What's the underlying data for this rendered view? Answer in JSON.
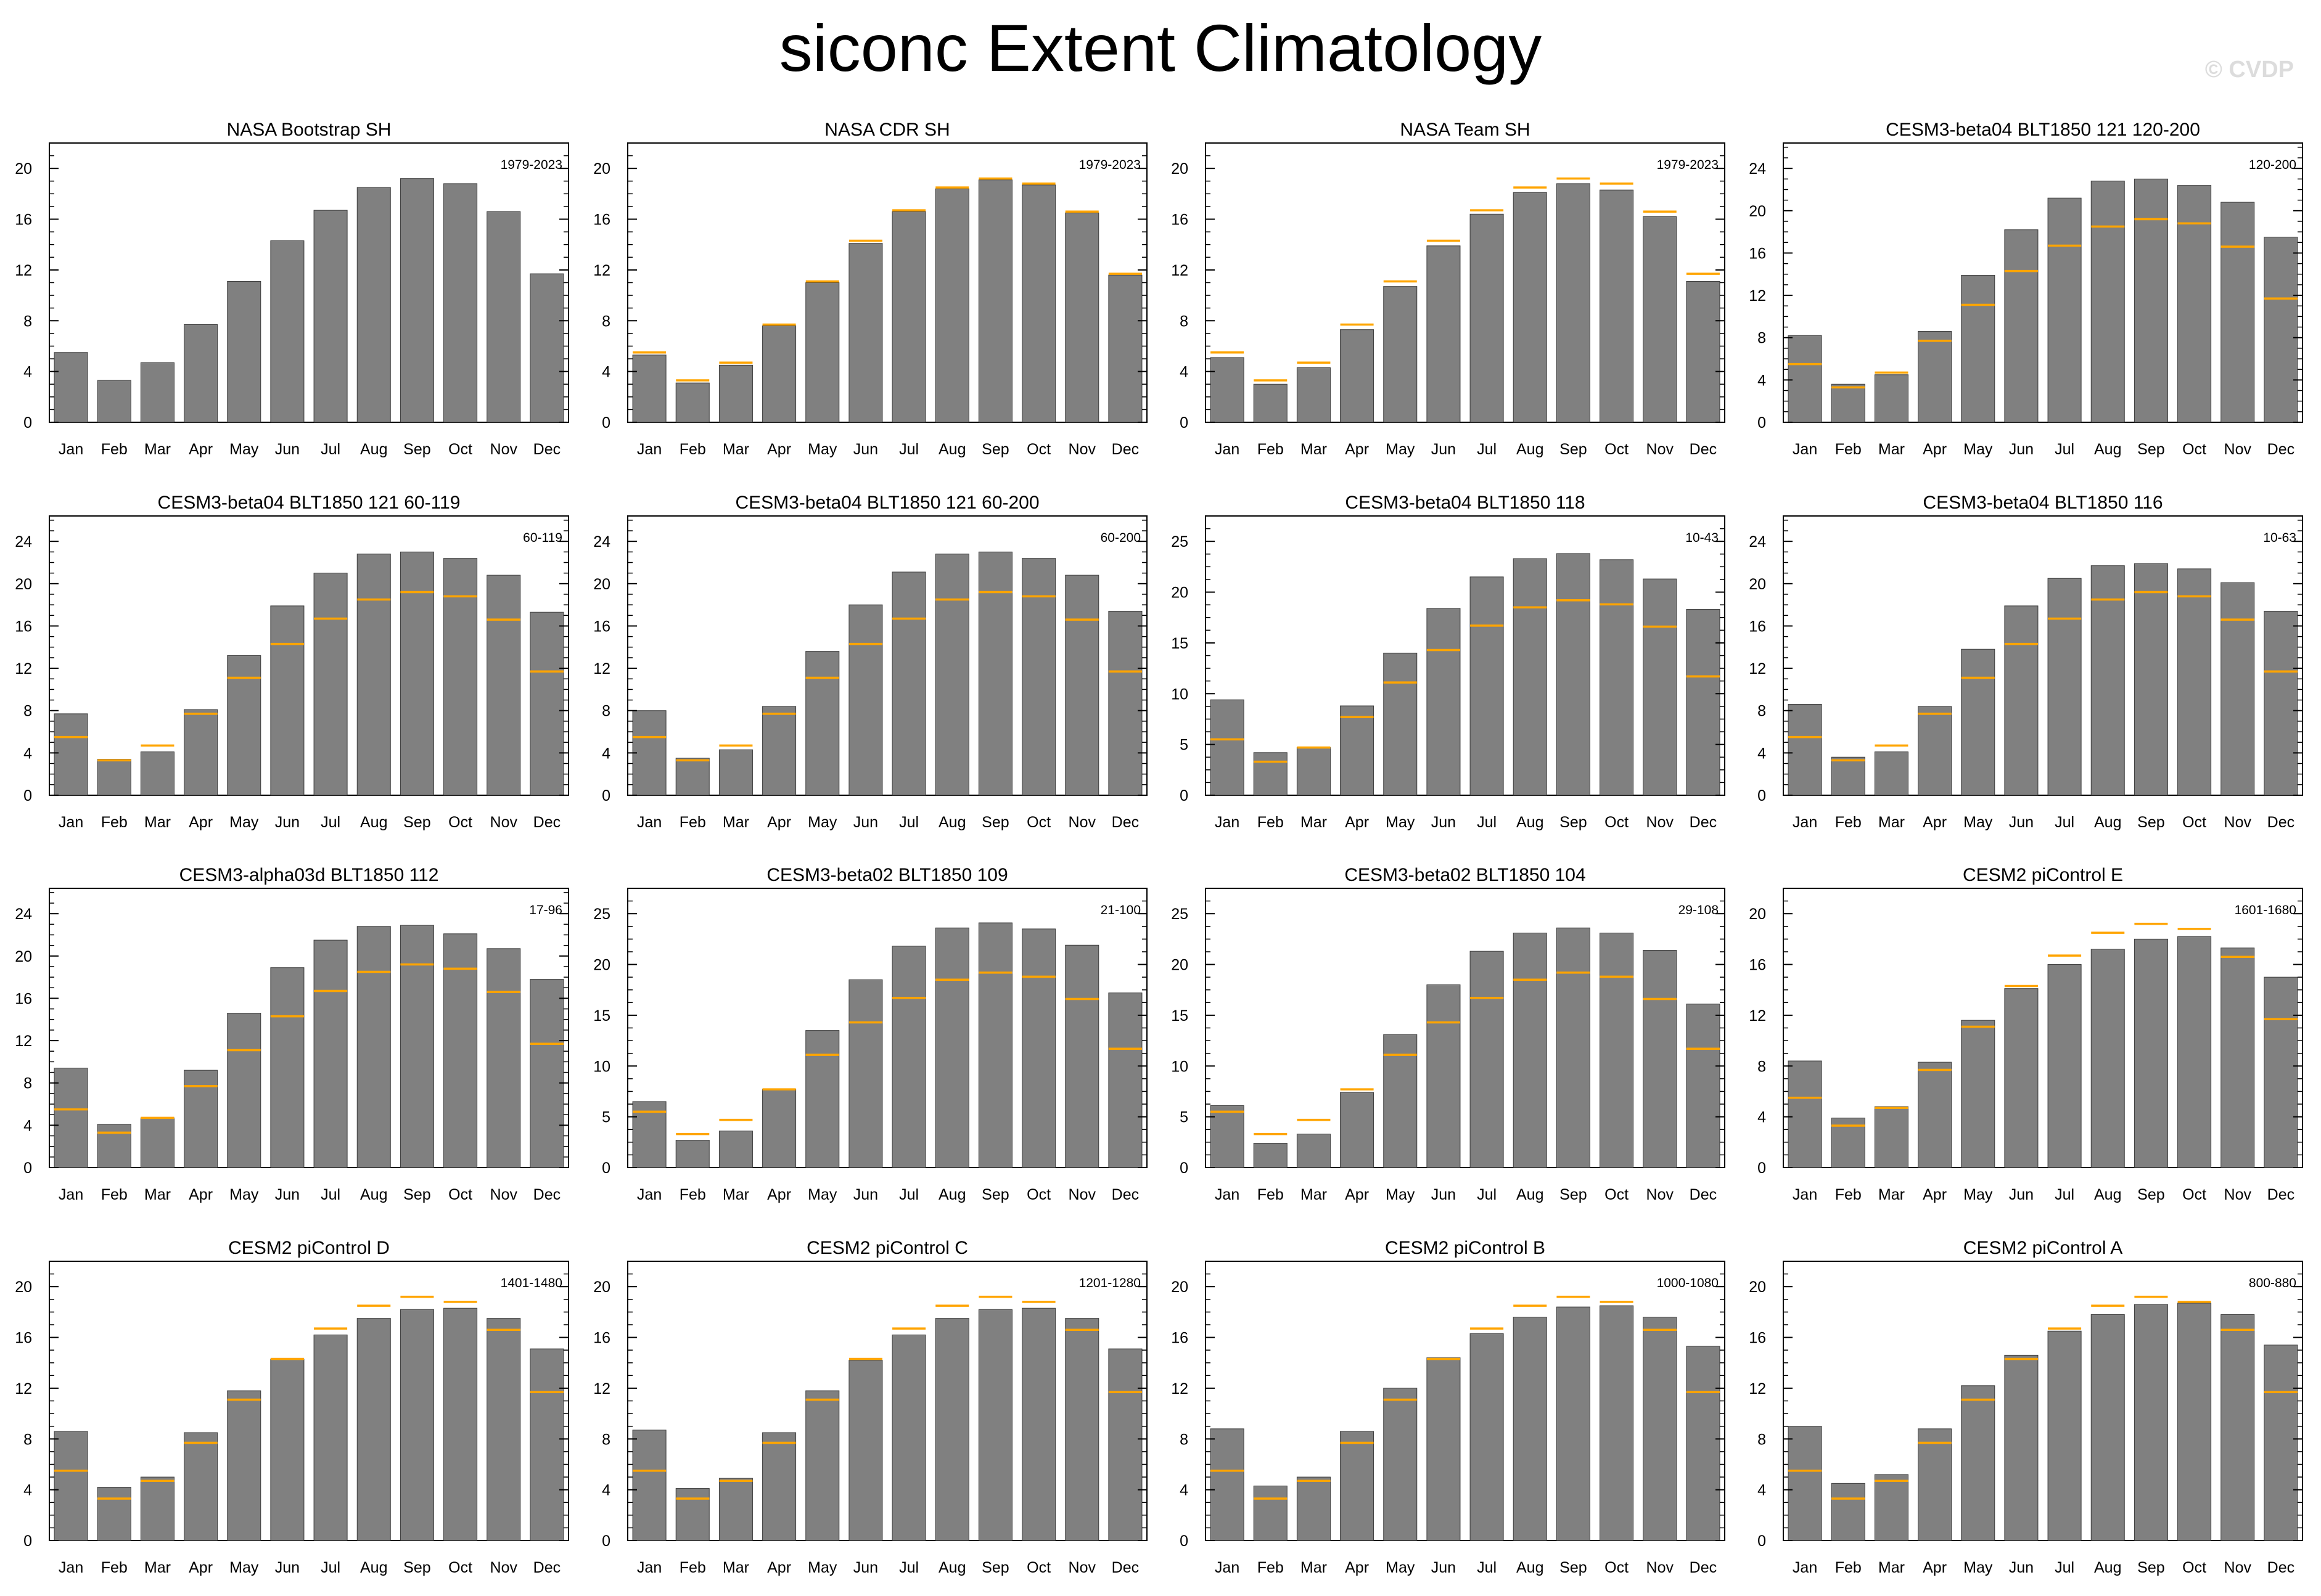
{
  "page": {
    "title": "siconc Extent Climatology",
    "watermark": "© CVDP"
  },
  "colors": {
    "bar": "#808080",
    "bar_edge": "#3c3c3c",
    "obs_line": "#ffa500",
    "highlight_title": "#ffa500",
    "axis": "#000000"
  },
  "chart_data": [
    {
      "type": "bar",
      "title": "NASA Bootstrap SH",
      "period": "1979-2023",
      "title_highlight": true,
      "ylim": [
        0,
        22
      ],
      "yticks": [
        0,
        4,
        8,
        12,
        16,
        20
      ],
      "categories": [
        "Jan",
        "Feb",
        "Mar",
        "Apr",
        "May",
        "Jun",
        "Jul",
        "Aug",
        "Sep",
        "Oct",
        "Nov",
        "Dec"
      ],
      "values": [
        5.5,
        3.3,
        4.7,
        7.7,
        11.1,
        14.3,
        16.7,
        18.5,
        19.2,
        18.8,
        16.6,
        11.7
      ],
      "reference": []
    },
    {
      "type": "bar",
      "title": "NASA CDR SH",
      "period": "1979-2023",
      "ylim": [
        0,
        22
      ],
      "yticks": [
        0,
        4,
        8,
        12,
        16,
        20
      ],
      "categories": [
        "Jan",
        "Feb",
        "Mar",
        "Apr",
        "May",
        "Jun",
        "Jul",
        "Aug",
        "Sep",
        "Oct",
        "Nov",
        "Dec"
      ],
      "values": [
        5.3,
        3.1,
        4.5,
        7.6,
        11.0,
        14.1,
        16.6,
        18.4,
        19.1,
        18.7,
        16.5,
        11.6
      ],
      "reference": [
        5.5,
        3.3,
        4.7,
        7.7,
        11.1,
        14.3,
        16.7,
        18.5,
        19.2,
        18.8,
        16.6,
        11.7
      ]
    },
    {
      "type": "bar",
      "title": "NASA Team SH",
      "period": "1979-2023",
      "ylim": [
        0,
        22
      ],
      "yticks": [
        0,
        4,
        8,
        12,
        16,
        20
      ],
      "categories": [
        "Jan",
        "Feb",
        "Mar",
        "Apr",
        "May",
        "Jun",
        "Jul",
        "Aug",
        "Sep",
        "Oct",
        "Nov",
        "Dec"
      ],
      "values": [
        5.1,
        3.0,
        4.3,
        7.3,
        10.7,
        13.9,
        16.4,
        18.1,
        18.8,
        18.3,
        16.2,
        11.1
      ],
      "reference": [
        5.5,
        3.3,
        4.7,
        7.7,
        11.1,
        14.3,
        16.7,
        18.5,
        19.2,
        18.8,
        16.6,
        11.7
      ]
    },
    {
      "type": "bar",
      "title": "CESM3-beta04 BLT1850 121 120-200",
      "period": "120-200",
      "ylim": [
        0,
        26.4
      ],
      "yticks": [
        0,
        4,
        8,
        12,
        16,
        20,
        24
      ],
      "categories": [
        "Jan",
        "Feb",
        "Mar",
        "Apr",
        "May",
        "Jun",
        "Jul",
        "Aug",
        "Sep",
        "Oct",
        "Nov",
        "Dec"
      ],
      "values": [
        8.2,
        3.6,
        4.5,
        8.6,
        13.9,
        18.2,
        21.2,
        22.8,
        23.0,
        22.4,
        20.8,
        17.5
      ],
      "reference": [
        5.5,
        3.3,
        4.7,
        7.7,
        11.1,
        14.3,
        16.7,
        18.5,
        19.2,
        18.8,
        16.6,
        11.7
      ]
    },
    {
      "type": "bar",
      "title": "CESM3-beta04 BLT1850 121 60-119",
      "period": "60-119",
      "ylim": [
        0,
        26.4
      ],
      "yticks": [
        0,
        4,
        8,
        12,
        16,
        20,
        24
      ],
      "categories": [
        "Jan",
        "Feb",
        "Mar",
        "Apr",
        "May",
        "Jun",
        "Jul",
        "Aug",
        "Sep",
        "Oct",
        "Nov",
        "Dec"
      ],
      "values": [
        7.7,
        3.4,
        4.1,
        8.1,
        13.2,
        17.9,
        21.0,
        22.8,
        23.0,
        22.4,
        20.8,
        17.3
      ],
      "reference": [
        5.5,
        3.3,
        4.7,
        7.7,
        11.1,
        14.3,
        16.7,
        18.5,
        19.2,
        18.8,
        16.6,
        11.7
      ]
    },
    {
      "type": "bar",
      "title": "CESM3-beta04 BLT1850 121 60-200",
      "period": "60-200",
      "ylim": [
        0,
        26.4
      ],
      "yticks": [
        0,
        4,
        8,
        12,
        16,
        20,
        24
      ],
      "categories": [
        "Jan",
        "Feb",
        "Mar",
        "Apr",
        "May",
        "Jun",
        "Jul",
        "Aug",
        "Sep",
        "Oct",
        "Nov",
        "Dec"
      ],
      "values": [
        8.0,
        3.5,
        4.3,
        8.4,
        13.6,
        18.0,
        21.1,
        22.8,
        23.0,
        22.4,
        20.8,
        17.4
      ],
      "reference": [
        5.5,
        3.3,
        4.7,
        7.7,
        11.1,
        14.3,
        16.7,
        18.5,
        19.2,
        18.8,
        16.6,
        11.7
      ]
    },
    {
      "type": "bar",
      "title": "CESM3-beta04 BLT1850 118",
      "period": "10-43",
      "ylim": [
        0,
        27.5
      ],
      "yticks": [
        0,
        5,
        10,
        15,
        20,
        25
      ],
      "categories": [
        "Jan",
        "Feb",
        "Mar",
        "Apr",
        "May",
        "Jun",
        "Jul",
        "Aug",
        "Sep",
        "Oct",
        "Nov",
        "Dec"
      ],
      "values": [
        9.4,
        4.2,
        4.7,
        8.8,
        14.0,
        18.4,
        21.5,
        23.3,
        23.8,
        23.2,
        21.3,
        18.3
      ],
      "reference": [
        5.5,
        3.3,
        4.7,
        7.7,
        11.1,
        14.3,
        16.7,
        18.5,
        19.2,
        18.8,
        16.6,
        11.7
      ]
    },
    {
      "type": "bar",
      "title": "CESM3-beta04 BLT1850 116",
      "period": "10-63",
      "ylim": [
        0,
        26.4
      ],
      "yticks": [
        0,
        4,
        8,
        12,
        16,
        20,
        24
      ],
      "categories": [
        "Jan",
        "Feb",
        "Mar",
        "Apr",
        "May",
        "Jun",
        "Jul",
        "Aug",
        "Sep",
        "Oct",
        "Nov",
        "Dec"
      ],
      "values": [
        8.6,
        3.6,
        4.1,
        8.4,
        13.8,
        17.9,
        20.5,
        21.7,
        21.9,
        21.4,
        20.1,
        17.4
      ],
      "reference": [
        5.5,
        3.3,
        4.7,
        7.7,
        11.1,
        14.3,
        16.7,
        18.5,
        19.2,
        18.8,
        16.6,
        11.7
      ]
    },
    {
      "type": "bar",
      "title": "CESM3-alpha03d BLT1850 112",
      "period": "17-96",
      "ylim": [
        0,
        26.4
      ],
      "yticks": [
        0,
        4,
        8,
        12,
        16,
        20,
        24
      ],
      "categories": [
        "Jan",
        "Feb",
        "Mar",
        "Apr",
        "May",
        "Jun",
        "Jul",
        "Aug",
        "Sep",
        "Oct",
        "Nov",
        "Dec"
      ],
      "values": [
        9.4,
        4.1,
        4.7,
        9.2,
        14.6,
        18.9,
        21.5,
        22.8,
        22.9,
        22.1,
        20.7,
        17.8
      ],
      "reference": [
        5.5,
        3.3,
        4.7,
        7.7,
        11.1,
        14.3,
        16.7,
        18.5,
        19.2,
        18.8,
        16.6,
        11.7
      ]
    },
    {
      "type": "bar",
      "title": "CESM3-beta02 BLT1850 109",
      "period": "21-100",
      "ylim": [
        0,
        27.5
      ],
      "yticks": [
        0,
        5,
        10,
        15,
        20,
        25
      ],
      "categories": [
        "Jan",
        "Feb",
        "Mar",
        "Apr",
        "May",
        "Jun",
        "Jul",
        "Aug",
        "Sep",
        "Oct",
        "Nov",
        "Dec"
      ],
      "values": [
        6.5,
        2.7,
        3.6,
        7.7,
        13.5,
        18.5,
        21.8,
        23.6,
        24.1,
        23.5,
        21.9,
        17.2
      ],
      "reference": [
        5.5,
        3.3,
        4.7,
        7.7,
        11.1,
        14.3,
        16.7,
        18.5,
        19.2,
        18.8,
        16.6,
        11.7
      ]
    },
    {
      "type": "bar",
      "title": "CESM3-beta02 BLT1850 104",
      "period": "29-108",
      "ylim": [
        0,
        27.5
      ],
      "yticks": [
        0,
        5,
        10,
        15,
        20,
        25
      ],
      "categories": [
        "Jan",
        "Feb",
        "Mar",
        "Apr",
        "May",
        "Jun",
        "Jul",
        "Aug",
        "Sep",
        "Oct",
        "Nov",
        "Dec"
      ],
      "values": [
        6.1,
        2.4,
        3.3,
        7.4,
        13.1,
        18.0,
        21.3,
        23.1,
        23.6,
        23.1,
        21.4,
        16.1
      ],
      "reference": [
        5.5,
        3.3,
        4.7,
        7.7,
        11.1,
        14.3,
        16.7,
        18.5,
        19.2,
        18.8,
        16.6,
        11.7
      ]
    },
    {
      "type": "bar",
      "title": "CESM2 piControl E",
      "period": "1601-1680",
      "ylim": [
        0,
        22
      ],
      "yticks": [
        0,
        4,
        8,
        12,
        16,
        20
      ],
      "categories": [
        "Jan",
        "Feb",
        "Mar",
        "Apr",
        "May",
        "Jun",
        "Jul",
        "Aug",
        "Sep",
        "Oct",
        "Nov",
        "Dec"
      ],
      "values": [
        8.4,
        3.9,
        4.8,
        8.3,
        11.6,
        14.1,
        16.0,
        17.2,
        18.0,
        18.2,
        17.3,
        15.0
      ],
      "reference": [
        5.5,
        3.3,
        4.7,
        7.7,
        11.1,
        14.3,
        16.7,
        18.5,
        19.2,
        18.8,
        16.6,
        11.7
      ]
    },
    {
      "type": "bar",
      "title": "CESM2 piControl D",
      "period": "1401-1480",
      "ylim": [
        0,
        22
      ],
      "yticks": [
        0,
        4,
        8,
        12,
        16,
        20
      ],
      "categories": [
        "Jan",
        "Feb",
        "Mar",
        "Apr",
        "May",
        "Jun",
        "Jul",
        "Aug",
        "Sep",
        "Oct",
        "Nov",
        "Dec"
      ],
      "values": [
        8.6,
        4.2,
        5.0,
        8.5,
        11.8,
        14.3,
        16.2,
        17.5,
        18.2,
        18.3,
        17.5,
        15.1
      ],
      "reference": [
        5.5,
        3.3,
        4.7,
        7.7,
        11.1,
        14.3,
        16.7,
        18.5,
        19.2,
        18.8,
        16.6,
        11.7
      ]
    },
    {
      "type": "bar",
      "title": "CESM2 piControl C",
      "period": "1201-1280",
      "ylim": [
        0,
        22
      ],
      "yticks": [
        0,
        4,
        8,
        12,
        16,
        20
      ],
      "categories": [
        "Jan",
        "Feb",
        "Mar",
        "Apr",
        "May",
        "Jun",
        "Jul",
        "Aug",
        "Sep",
        "Oct",
        "Nov",
        "Dec"
      ],
      "values": [
        8.7,
        4.1,
        4.9,
        8.5,
        11.8,
        14.2,
        16.2,
        17.5,
        18.2,
        18.3,
        17.5,
        15.1
      ],
      "reference": [
        5.5,
        3.3,
        4.7,
        7.7,
        11.1,
        14.3,
        16.7,
        18.5,
        19.2,
        18.8,
        16.6,
        11.7
      ]
    },
    {
      "type": "bar",
      "title": "CESM2 piControl B",
      "period": "1000-1080",
      "ylim": [
        0,
        22
      ],
      "yticks": [
        0,
        4,
        8,
        12,
        16,
        20
      ],
      "categories": [
        "Jan",
        "Feb",
        "Mar",
        "Apr",
        "May",
        "Jun",
        "Jul",
        "Aug",
        "Sep",
        "Oct",
        "Nov",
        "Dec"
      ],
      "values": [
        8.8,
        4.3,
        5.0,
        8.6,
        12.0,
        14.4,
        16.3,
        17.6,
        18.4,
        18.5,
        17.6,
        15.3
      ],
      "reference": [
        5.5,
        3.3,
        4.7,
        7.7,
        11.1,
        14.3,
        16.7,
        18.5,
        19.2,
        18.8,
        16.6,
        11.7
      ]
    },
    {
      "type": "bar",
      "title": "CESM2 piControl A",
      "period": "800-880",
      "ylim": [
        0,
        22
      ],
      "yticks": [
        0,
        4,
        8,
        12,
        16,
        20
      ],
      "categories": [
        "Jan",
        "Feb",
        "Mar",
        "Apr",
        "May",
        "Jun",
        "Jul",
        "Aug",
        "Sep",
        "Oct",
        "Nov",
        "Dec"
      ],
      "values": [
        9.0,
        4.5,
        5.2,
        8.8,
        12.2,
        14.6,
        16.5,
        17.8,
        18.6,
        18.7,
        17.8,
        15.4
      ],
      "reference": [
        5.5,
        3.3,
        4.7,
        7.7,
        11.1,
        14.3,
        16.7,
        18.5,
        19.2,
        18.8,
        16.6,
        11.7
      ]
    }
  ]
}
